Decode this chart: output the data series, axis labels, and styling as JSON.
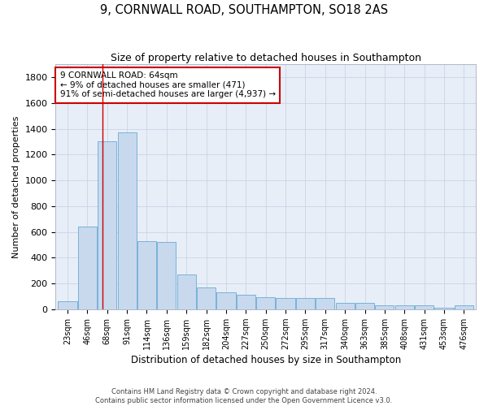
{
  "title": "9, CORNWALL ROAD, SOUTHAMPTON, SO18 2AS",
  "subtitle": "Size of property relative to detached houses in Southampton",
  "xlabel": "Distribution of detached houses by size in Southampton",
  "ylabel": "Number of detached properties",
  "categories": [
    "23sqm",
    "46sqm",
    "68sqm",
    "91sqm",
    "114sqm",
    "136sqm",
    "159sqm",
    "182sqm",
    "204sqm",
    "227sqm",
    "250sqm",
    "272sqm",
    "295sqm",
    "317sqm",
    "340sqm",
    "363sqm",
    "385sqm",
    "408sqm",
    "431sqm",
    "453sqm",
    "476sqm"
  ],
  "values": [
    65,
    640,
    1300,
    1370,
    530,
    520,
    270,
    170,
    130,
    115,
    95,
    85,
    85,
    85,
    50,
    50,
    32,
    32,
    32,
    10,
    32
  ],
  "bar_color": "#c8d9ee",
  "bar_edge_color": "#6aaad4",
  "annotation_box_line1": "9 CORNWALL ROAD: 64sqm",
  "annotation_box_line2": "← 9% of detached houses are smaller (471)",
  "annotation_box_line3": "91% of semi-detached houses are larger (4,937) →",
  "annotation_box_color": "#ffffff",
  "annotation_box_edge_color": "#cc0000",
  "vline_color": "#cc0000",
  "ylim": [
    0,
    1900
  ],
  "yticks": [
    0,
    200,
    400,
    600,
    800,
    1000,
    1200,
    1400,
    1600,
    1800
  ],
  "footer_line1": "Contains HM Land Registry data © Crown copyright and database right 2024.",
  "footer_line2": "Contains public sector information licensed under the Open Government Licence v3.0.",
  "background_color": "#ffffff",
  "plot_bg_color": "#e8eef7",
  "grid_color": "#c8d4e8"
}
